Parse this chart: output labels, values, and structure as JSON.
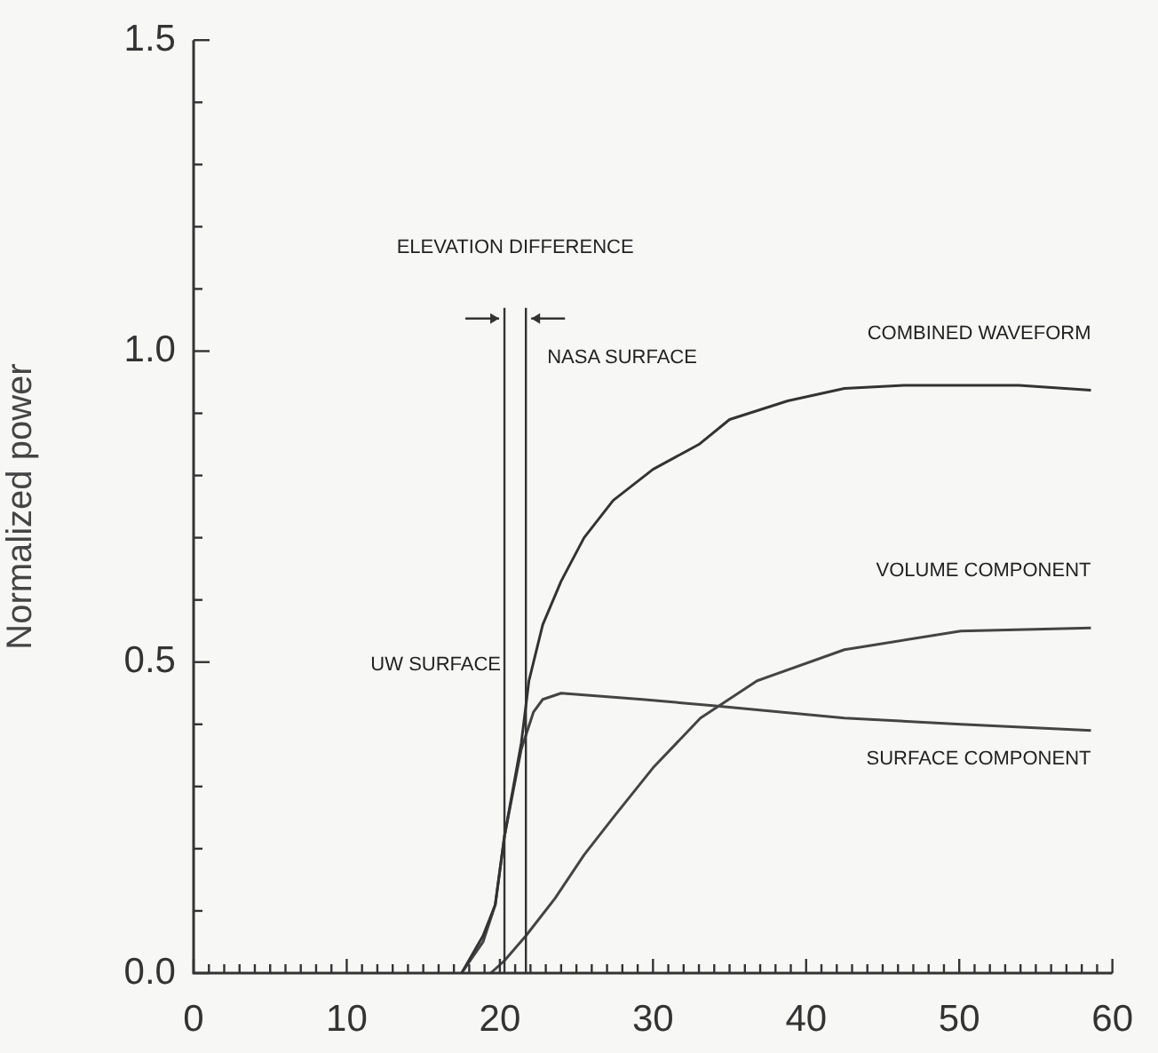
{
  "chart_data": {
    "type": "line",
    "ylabel": "Normalized power",
    "marker": "none",
    "grid": false,
    "legend": false,
    "xlim": [
      0,
      60
    ],
    "ylim": [
      0,
      1.5
    ],
    "xticks": [
      0,
      {
        "value": 1,
        "label": null
      },
      {
        "value": 2,
        "label": null
      },
      {
        "value": 3,
        "label": null
      },
      {
        "value": 4,
        "label": null
      },
      {
        "value": 5,
        "label": null
      },
      {
        "value": 6,
        "label": null
      },
      {
        "value": 7,
        "label": null
      },
      {
        "value": 8,
        "label": null
      },
      {
        "value": 9,
        "label": null
      },
      10,
      {
        "value": 11,
        "label": null
      },
      {
        "value": 12,
        "label": null
      },
      {
        "value": 13,
        "label": null
      },
      {
        "value": 14,
        "label": null
      },
      {
        "value": 15,
        "label": null
      },
      {
        "value": 16,
        "label": null
      },
      {
        "value": 17,
        "label": null
      },
      {
        "value": 18,
        "label": null
      },
      {
        "value": 19,
        "label": null
      },
      20,
      {
        "value": 21,
        "label": null
      },
      {
        "value": 22,
        "label": null
      },
      {
        "value": 23,
        "label": null
      },
      {
        "value": 24,
        "label": null
      },
      {
        "value": 25,
        "label": null
      },
      {
        "value": 26,
        "label": null
      },
      {
        "value": 27,
        "label": null
      },
      {
        "value": 28,
        "label": null
      },
      {
        "value": 29,
        "label": null
      },
      30,
      {
        "value": 31,
        "label": null
      },
      {
        "value": 32,
        "label": null
      },
      {
        "value": 33,
        "label": null
      },
      {
        "value": 34,
        "label": null
      },
      {
        "value": 35,
        "label": null
      },
      {
        "value": 36,
        "label": null
      },
      {
        "value": 37,
        "label": null
      },
      {
        "value": 38,
        "label": null
      },
      {
        "value": 39,
        "label": null
      },
      40,
      {
        "value": 41,
        "label": null
      },
      {
        "value": 42,
        "label": null
      },
      {
        "value": 43,
        "label": null
      },
      {
        "value": 44,
        "label": null
      },
      {
        "value": 45,
        "label": null
      },
      {
        "value": 46,
        "label": null
      },
      {
        "value": 47,
        "label": null
      },
      {
        "value": 48,
        "label": null
      },
      {
        "value": 49,
        "label": null
      },
      50,
      {
        "value": 51,
        "label": null
      },
      {
        "value": 52,
        "label": null
      },
      {
        "value": 53,
        "label": null
      },
      {
        "value": 54,
        "label": null
      },
      {
        "value": 55,
        "label": null
      },
      {
        "value": 56,
        "label": null
      },
      {
        "value": 57,
        "label": null
      },
      {
        "value": 58,
        "label": null
      },
      {
        "value": 59,
        "label": null
      },
      60
    ],
    "yticks": [
      {
        "value": 0,
        "label": "0.0"
      },
      {
        "value": 0.1,
        "label": null
      },
      {
        "value": 0.2,
        "label": null
      },
      {
        "value": 0.3,
        "label": null
      },
      {
        "value": 0.4,
        "label": null
      },
      0.5,
      {
        "value": 0.6,
        "label": null
      },
      {
        "value": 0.7,
        "label": null
      },
      {
        "value": 0.8,
        "label": null
      },
      {
        "value": 0.9,
        "label": null
      },
      {
        "value": 1,
        "label": "1.0"
      },
      {
        "value": 1.1,
        "label": null
      },
      {
        "value": 1.2,
        "label": null
      },
      {
        "value": 1.3,
        "label": null
      },
      {
        "value": 1.4,
        "label": null
      },
      1.5
    ],
    "series": [
      {
        "name": "COMBINED WAVEFORM",
        "color": "#333333",
        "x": [
          17.5,
          18.9,
          19.7,
          20.3,
          21.4,
          21.9,
          22.8,
          24,
          25.5,
          27.4,
          30,
          33,
          35,
          38.8,
          42.5,
          46.4,
          50.1,
          53.9,
          58.6
        ],
        "values": [
          0,
          0.06,
          0.11,
          0.22,
          0.37,
          0.47,
          0.56,
          0.63,
          0.7,
          0.76,
          0.81,
          0.85,
          0.89,
          0.92,
          0.94,
          0.945,
          0.945,
          0.945,
          0.937
        ]
      },
      {
        "name": "VOLUME COMPONENT",
        "color": "#444444",
        "x": [
          19.4,
          20.3,
          21.7,
          23.6,
          25.5,
          27.4,
          30,
          33.1,
          36.8,
          42.5,
          50.1,
          58.6
        ],
        "values": [
          0,
          0.02,
          0.06,
          0.12,
          0.19,
          0.25,
          0.33,
          0.41,
          0.47,
          0.52,
          0.55,
          0.555
        ]
      },
      {
        "name": "SURFACE COMPONENT",
        "color": "#444444",
        "x": [
          17.5,
          18.9,
          19.7,
          20.3,
          21.4,
          22.2,
          22.8,
          24,
          29.3,
          33.9,
          42.5,
          50.1,
          58.6
        ],
        "values": [
          0,
          0.05,
          0.11,
          0.22,
          0.36,
          0.42,
          0.44,
          0.45,
          0.44,
          0.43,
          0.41,
          0.4,
          0.39
        ]
      }
    ],
    "ref_lines": [
      {
        "axis": "x",
        "value": 20.3,
        "label": "UW SURFACE",
        "color": "#333333"
      },
      {
        "axis": "x",
        "value": 21.7,
        "label": "NASA SURFACE",
        "color": "#333333"
      }
    ],
    "annotations": [
      "ELEVATION DIFFERENCE"
    ]
  }
}
